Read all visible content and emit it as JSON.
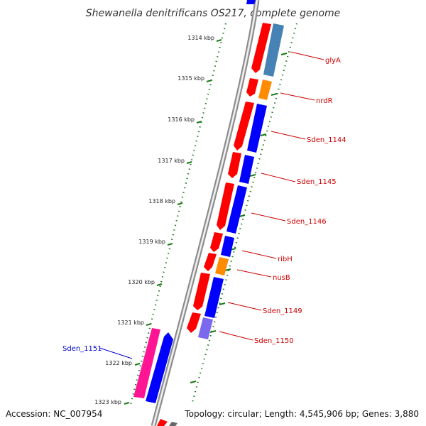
{
  "title": "Shewanella denitrificans OS217, complete genome",
  "footer": {
    "accession": "Accession: NC_007954",
    "summary": "Topology: circular; Length: 4,545,906 bp; Genes: 3,880"
  },
  "colors": {
    "forward_gene": "#ff0000",
    "reverse_gene": "#0000ff",
    "rna_gene": "#ff8c00",
    "other_gene": "#4682b4",
    "pseudo_gene": "#7b68ee",
    "highlight_gene": "#ff1493",
    "label_red": "#cc0000",
    "label_blue": "#0000cc",
    "tick_marks": "#1a7a1a",
    "backbone": "#888888"
  },
  "ticks": [
    {
      "label": "1314 kbp"
    },
    {
      "label": "1315 kbp"
    },
    {
      "label": "1316 kbp"
    },
    {
      "label": "1317 kbp"
    },
    {
      "label": "1318 kbp"
    },
    {
      "label": "1319 kbp"
    },
    {
      "label": "1320 kbp"
    },
    {
      "label": "1321 kbp"
    },
    {
      "label": "1322 kbp"
    },
    {
      "label": "1323 kbp"
    }
  ],
  "gene_labels": [
    {
      "name": "glyA",
      "color": "#cc0000"
    },
    {
      "name": "nrdR",
      "color": "#cc0000"
    },
    {
      "name": "Sden_1144",
      "color": "#cc0000"
    },
    {
      "name": "Sden_1145",
      "color": "#cc0000"
    },
    {
      "name": "Sden_1146",
      "color": "#cc0000"
    },
    {
      "name": "ribH",
      "color": "#cc0000"
    },
    {
      "name": "nusB",
      "color": "#cc0000"
    },
    {
      "name": "Sden_1149",
      "color": "#cc0000"
    },
    {
      "name": "Sden_1150",
      "color": "#cc0000"
    },
    {
      "name": "Sden_1151",
      "color": "#0000cc"
    }
  ],
  "gene_blocks": [
    {
      "id": "outer-upper-red-1",
      "color": "#ff0000"
    },
    {
      "id": "outer-upper-red-2",
      "color": "#ff0000"
    },
    {
      "id": "outer-upper-red-3",
      "color": "#ff0000"
    },
    {
      "id": "outer-upper-red-4",
      "color": "#ff0000"
    },
    {
      "id": "outer-upper-red-5",
      "color": "#ff0000"
    },
    {
      "id": "outer-upper-red-6",
      "color": "#ff0000"
    },
    {
      "id": "outer-upper-red-7",
      "color": "#ff0000"
    },
    {
      "id": "outer-upper-red-8",
      "color": "#ff0000"
    },
    {
      "id": "outer-upper-red-9",
      "color": "#ff0000"
    },
    {
      "id": "outer-upper-red-10",
      "color": "#ff0000"
    },
    {
      "id": "inner-upper-steelblue",
      "color": "#4682b4"
    },
    {
      "id": "inner-upper-orange-1",
      "color": "#ff8c00"
    },
    {
      "id": "inner-upper-blue-1",
      "color": "#0000ff"
    },
    {
      "id": "inner-upper-blue-2",
      "color": "#0000ff"
    },
    {
      "id": "inner-upper-blue-3",
      "color": "#0000ff"
    },
    {
      "id": "inner-upper-blue-4",
      "color": "#0000ff"
    },
    {
      "id": "inner-upper-orange-2",
      "color": "#ff8c00"
    },
    {
      "id": "inner-upper-blue-5",
      "color": "#0000ff"
    },
    {
      "id": "inner-upper-purple",
      "color": "#7b68ee"
    },
    {
      "id": "lower-pink",
      "color": "#ff1493"
    },
    {
      "id": "lower-blue",
      "color": "#0000ff"
    }
  ]
}
